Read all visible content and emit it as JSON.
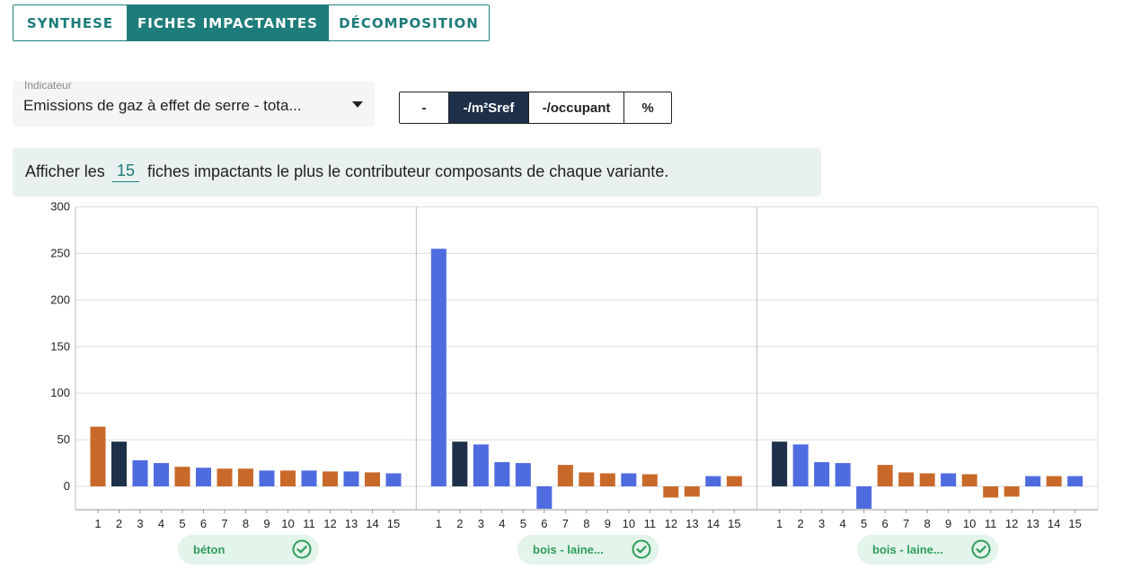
{
  "tabs": [
    {
      "label": "SYNTHESE",
      "active": false
    },
    {
      "label": "FICHES IMPACTANTES",
      "active": true
    },
    {
      "label": "DÉCOMPOSITION",
      "active": false
    }
  ],
  "indicator": {
    "label": "Indicateur",
    "value": "Emissions de gaz à effet de serre - tota..."
  },
  "units": [
    {
      "label": "-",
      "active": false
    },
    {
      "label": "-/m²Sref",
      "active": true
    },
    {
      "label": "-/occupant",
      "active": false
    },
    {
      "label": "%",
      "active": false
    }
  ],
  "info": {
    "prefix": "Afficher les",
    "count": "15",
    "suffix": "fiches impactants le plus le contributeur composants de chaque variante."
  },
  "colors": {
    "accent": "#1e7c7a",
    "bar_orange": "#c8692a",
    "bar_navy": "#1e2f4a",
    "bar_blue": "#4f6be0",
    "pill_bg": "#e3f4ea",
    "pill_text": "#2f9d5a"
  },
  "chart_data": {
    "type": "bar",
    "ylim": [
      -25,
      300
    ],
    "yticks": [
      0,
      50,
      100,
      150,
      200,
      250,
      300
    ],
    "panels": [
      {
        "variant": "béton",
        "categories": [
          "1",
          "2",
          "3",
          "4",
          "5",
          "6",
          "7",
          "8",
          "9",
          "10",
          "11",
          "12",
          "13",
          "14",
          "15"
        ],
        "values": [
          64,
          48,
          28,
          25,
          21,
          20,
          19,
          19,
          17,
          17,
          17,
          16,
          16,
          15,
          14
        ],
        "colors": [
          "orange",
          "navy",
          "blue",
          "blue",
          "orange",
          "blue",
          "orange",
          "orange",
          "blue",
          "orange",
          "blue",
          "orange",
          "blue",
          "orange",
          "blue"
        ]
      },
      {
        "variant": "bois - laine...",
        "categories": [
          "1",
          "2",
          "3",
          "4",
          "5",
          "6",
          "7",
          "8",
          "9",
          "10",
          "11",
          "12",
          "13",
          "14",
          "15"
        ],
        "values": [
          255,
          48,
          45,
          26,
          25,
          -24,
          23,
          15,
          14,
          14,
          13,
          -12,
          -11,
          11,
          11
        ],
        "colors": [
          "blue",
          "navy",
          "blue",
          "blue",
          "blue",
          "blue",
          "orange",
          "orange",
          "orange",
          "blue",
          "orange",
          "orange",
          "orange",
          "blue",
          "orange"
        ]
      },
      {
        "variant": "bois - laine...",
        "categories": [
          "1",
          "2",
          "3",
          "4",
          "5",
          "6",
          "7",
          "8",
          "9",
          "10",
          "11",
          "12",
          "13",
          "14",
          "15"
        ],
        "values": [
          48,
          45,
          26,
          25,
          -24,
          23,
          15,
          14,
          14,
          13,
          -12,
          -11,
          11,
          11,
          11
        ],
        "colors": [
          "navy",
          "blue",
          "blue",
          "blue",
          "blue",
          "orange",
          "orange",
          "orange",
          "blue",
          "orange",
          "orange",
          "orange",
          "blue",
          "orange",
          "blue"
        ]
      }
    ]
  }
}
